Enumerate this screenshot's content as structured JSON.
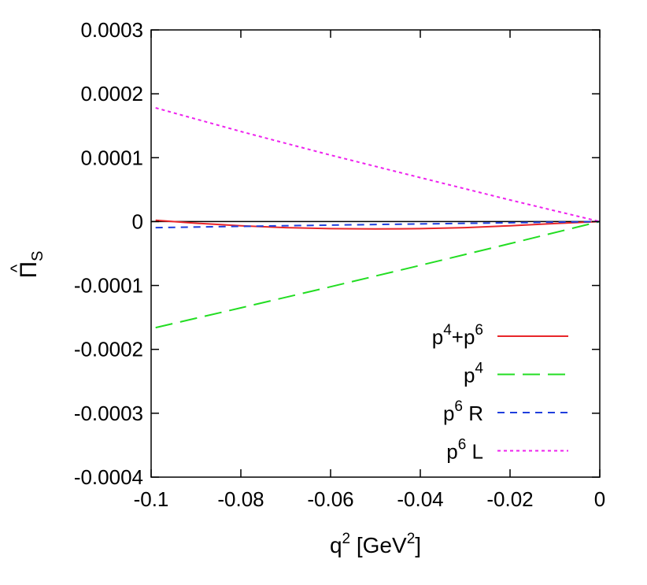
{
  "chart_data": {
    "type": "line",
    "xlabel": {
      "base": "q",
      "sup": "2",
      "bracket_open": " [GeV",
      "bracket_sup": "2",
      "bracket_close": "]"
    },
    "ylabel": {
      "base": "Π",
      "hat": "^",
      "sub": "S"
    },
    "xlim": [
      -0.1,
      0
    ],
    "ylim": [
      -0.0004,
      0.0003
    ],
    "xticks": [
      -0.1,
      -0.08,
      -0.06,
      -0.04,
      -0.02,
      0
    ],
    "xtick_labels": [
      "-0.1",
      "-0.08",
      "-0.06",
      "-0.04",
      "-0.02",
      "0"
    ],
    "yticks": [
      0.0003,
      0.0002,
      0.0001,
      0,
      -0.0001,
      -0.0002,
      -0.0003,
      -0.0004
    ],
    "ytick_labels": [
      "0.0003",
      "0.0002",
      "0.0001",
      "0",
      "-0.0001",
      "-0.0002",
      "-0.0003",
      "-0.0004"
    ],
    "zero_line": true,
    "grid": false,
    "legend_position": "bottom-right",
    "series": [
      {
        "id": "p4p6",
        "label": {
          "parts": [
            [
              "p",
              ""
            ],
            [
              "4",
              "sup"
            ],
            [
              "+p",
              ""
            ],
            [
              "6",
              "sup"
            ]
          ]
        },
        "color": "#e8262a",
        "dash": "solid",
        "x": [
          -0.099,
          -0.09,
          -0.08,
          -0.07,
          -0.06,
          -0.05,
          -0.04,
          -0.03,
          -0.02,
          -0.01,
          0
        ],
        "y": [
          2e-06,
          -2.5e-06,
          -6.5e-06,
          -9.5e-06,
          -1.1e-05,
          -1.15e-05,
          -1.1e-05,
          -9.5e-06,
          -6.5e-06,
          -3e-06,
          0
        ]
      },
      {
        "id": "p4",
        "label": {
          "parts": [
            [
              "p",
              ""
            ],
            [
              "4",
              "sup"
            ]
          ]
        },
        "color": "#22dd22",
        "dash": "long",
        "x": [
          -0.099,
          -0.08,
          -0.06,
          -0.04,
          -0.02,
          0
        ],
        "y": [
          -0.000166,
          -0.000135,
          -0.000102,
          -6.85e-05,
          -3.45e-05,
          0
        ]
      },
      {
        "id": "p6R",
        "label": {
          "parts": [
            [
              "p",
              ""
            ],
            [
              "6",
              "sup"
            ],
            [
              " R",
              ""
            ]
          ]
        },
        "color": "#1f3fdd",
        "dash": "medium",
        "x": [
          -0.099,
          -0.08,
          -0.06,
          -0.04,
          -0.02,
          0
        ],
        "y": [
          -9.5e-06,
          -7.5e-06,
          -5.5e-06,
          -3.7e-06,
          -1.8e-06,
          0
        ]
      },
      {
        "id": "p6L",
        "label": {
          "parts": [
            [
              "p",
              ""
            ],
            [
              "6",
              "sup"
            ],
            [
              " L",
              ""
            ]
          ]
        },
        "color": "#ee22ee",
        "dash": "short",
        "x": [
          -0.099,
          -0.08,
          -0.06,
          -0.04,
          -0.02,
          0
        ],
        "y": [
          0.000178,
          0.000141,
          0.000104,
          6.88e-05,
          3.38e-05,
          0
        ]
      }
    ]
  }
}
